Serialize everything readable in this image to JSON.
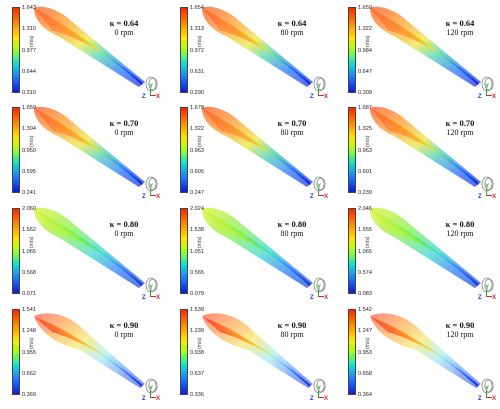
{
  "unit": "(m/s)",
  "axis_labels": {
    "y": "Y",
    "z": "Z",
    "x": "X"
  },
  "panels": [
    {
      "kappa": "κ = 0.64",
      "rpm": "0 rpm",
      "ticks": [
        "1.643",
        "1.310",
        "0.977",
        "0.644",
        "0.310"
      ],
      "style": "high"
    },
    {
      "kappa": "κ = 0.64",
      "rpm": "80 rpm",
      "ticks": [
        "1.654",
        "1.313",
        "0.972",
        "0.631",
        "0.290"
      ],
      "style": "high"
    },
    {
      "kappa": "κ = 0.64",
      "rpm": "120 rpm",
      "ticks": [
        "1.659",
        "1.322",
        "0.984",
        "0.647",
        "0.309"
      ],
      "style": "high"
    },
    {
      "kappa": "κ = 0.70",
      "rpm": "0 rpm",
      "ticks": [
        "1.659",
        "1.304",
        "0.950",
        "0.595",
        "0.241"
      ],
      "style": "high"
    },
    {
      "kappa": "κ = 0.70",
      "rpm": "80 rpm",
      "ticks": [
        "1.678",
        "1.322",
        "0.963",
        "0.605",
        "0.247"
      ],
      "style": "high"
    },
    {
      "kappa": "κ = 0.70",
      "rpm": "120 rpm",
      "ticks": [
        "1.687",
        "1.325",
        "0.963",
        "0.601",
        "0.239"
      ],
      "style": "high"
    },
    {
      "kappa": "κ = 0.80",
      "rpm": "0 rpm",
      "ticks": [
        "2.060",
        "1.562",
        "1.065",
        "0.568",
        "0.071"
      ],
      "style": "mid"
    },
    {
      "kappa": "κ = 0.80",
      "rpm": "80 rpm",
      "ticks": [
        "2.024",
        "1.538",
        "1.051",
        "0.565",
        "0.079"
      ],
      "style": "mid"
    },
    {
      "kappa": "κ = 0.80",
      "rpm": "120 rpm",
      "ticks": [
        "2.046",
        "1.555",
        "1.065",
        "0.574",
        "0.083"
      ],
      "style": "mid"
    },
    {
      "kappa": "κ = 0.90",
      "rpm": "0 rpm",
      "ticks": [
        "1.541",
        "1.248",
        "0.955",
        "0.662",
        "0.369"
      ],
      "style": "low"
    },
    {
      "kappa": "κ = 0.90",
      "rpm": "80 rpm",
      "ticks": [
        "1.539",
        "1.239",
        "0.938",
        "0.637",
        "0.336"
      ],
      "style": "low"
    },
    {
      "kappa": "κ = 0.90",
      "rpm": "120 rpm",
      "ticks": [
        "1.542",
        "1.247",
        "0.953",
        "0.658",
        "0.364"
      ],
      "style": "low"
    }
  ]
}
